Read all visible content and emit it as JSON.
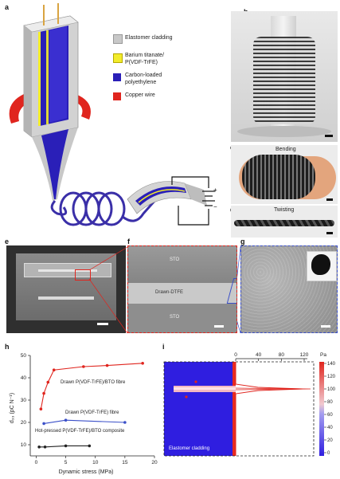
{
  "panels": {
    "a": "a",
    "b": "b",
    "c": "c",
    "d": "d",
    "e": "e",
    "f": "f",
    "g": "g",
    "h": "h",
    "i": "i"
  },
  "legend_a": [
    {
      "label": "Elastomer cladding",
      "color": "#c8c8c8"
    },
    {
      "label": "Barium titanate/",
      "color": "#f2ec2b"
    },
    {
      "label": "P(VDF-TrFE)",
      "color": ""
    },
    {
      "label": "Carbon-loaded",
      "color": "#2a1fb8"
    },
    {
      "label": "polyethylene",
      "color": ""
    },
    {
      "label": "Copper wire",
      "color": "#e0251e"
    }
  ],
  "circuit": {
    "plus": "+",
    "minus": "−"
  },
  "photo_c_label": "Bending",
  "photo_d_label": "Twisting",
  "sem_f": {
    "top": "STO",
    "middle": "Drawn-DTFE",
    "bottom": "STO"
  },
  "chart_h": {
    "type": "line",
    "ylabel": "d₃₃ (pC N⁻¹)",
    "xlabel": "Dynamic stress (MPa)",
    "xlim": [
      -1,
      20
    ],
    "ylim": [
      5,
      50
    ],
    "xticks": [
      "0",
      "5",
      "10",
      "15",
      "20"
    ],
    "yticks": [
      "10",
      "20",
      "30",
      "40",
      "50"
    ],
    "series": [
      {
        "name": "Drawn P(VDF-TrFE)/BTO fibre",
        "color": "#e0251e",
        "points": [
          [
            0.8,
            26
          ],
          [
            1.3,
            33
          ],
          [
            2,
            38
          ],
          [
            3,
            43.5
          ],
          [
            8,
            45
          ],
          [
            12,
            45.5
          ],
          [
            18,
            46.5
          ]
        ]
      },
      {
        "name": "Drawn P(VDF-TrFE) fibre",
        "color": "#3a4fc8",
        "points": [
          [
            1.3,
            19.5
          ],
          [
            5,
            21
          ],
          [
            15,
            20
          ]
        ]
      },
      {
        "name": "Hot-pressed P(VDF-TrFE)/BTO composite",
        "color": "#222222",
        "points": [
          [
            0.5,
            9
          ],
          [
            1.5,
            9
          ],
          [
            5,
            9.5
          ],
          [
            9,
            9.5
          ]
        ]
      }
    ]
  },
  "chart_i": {
    "type": "heatmap",
    "top_ticks": [
      "0",
      "40",
      "80",
      "120"
    ],
    "top_unit": "Pa",
    "colorbar_ticks": [
      "140",
      "120",
      "100",
      "80",
      "60",
      "40",
      "20",
      "0"
    ],
    "region_label": "Elastomer cladding"
  }
}
